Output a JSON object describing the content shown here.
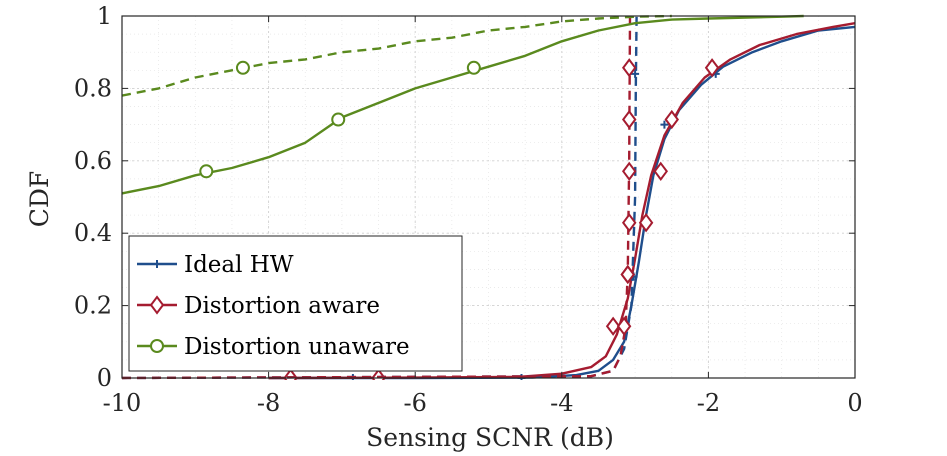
{
  "chart_data": {
    "type": "line",
    "title": "",
    "xlabel": "Sensing SCNR (dB)",
    "ylabel": "CDF",
    "xlim": [
      -10,
      0
    ],
    "ylim": [
      0,
      1
    ],
    "xticks": [
      -10,
      -8,
      -6,
      -4,
      -2,
      0
    ],
    "yticks": [
      0,
      0.2,
      0.4,
      0.6,
      0.8,
      1
    ],
    "xtick_labels": [
      "-10",
      "-8",
      "-6",
      "-4",
      "-2",
      "0"
    ],
    "ytick_labels": [
      "0",
      "0.2",
      "0.4",
      "0.6",
      "0.8",
      "1"
    ],
    "grid": true,
    "legend_location": "bottom-left",
    "series": [
      {
        "name": "Ideal HW",
        "color": "#1f4e8c",
        "marker": "plus",
        "dash": "solid",
        "in_legend": true,
        "points": [
          [
            -8,
            0
          ],
          [
            -6,
            0
          ],
          [
            -4.4,
            0.001
          ],
          [
            -3.8,
            0.008
          ],
          [
            -3.5,
            0.02
          ],
          [
            -3.3,
            0.05
          ],
          [
            -3.15,
            0.1
          ],
          [
            -3.05,
            0.2
          ],
          [
            -2.95,
            0.32
          ],
          [
            -2.85,
            0.45
          ],
          [
            -2.75,
            0.56
          ],
          [
            -2.6,
            0.66
          ],
          [
            -2.4,
            0.74
          ],
          [
            -2.1,
            0.81
          ],
          [
            -1.8,
            0.86
          ],
          [
            -1.4,
            0.9
          ],
          [
            -1,
            0.93
          ],
          [
            -0.5,
            0.96
          ],
          [
            0,
            0.97
          ]
        ],
        "markers": [
          [
            -6.85,
            0
          ],
          [
            -4.55,
            0
          ],
          [
            -3.05,
            0.28
          ],
          [
            -2.6,
            0.7
          ],
          [
            -1.9,
            0.84
          ]
        ]
      },
      {
        "name": "Distortion aware",
        "color": "#a51c30",
        "marker": "diamond",
        "dash": "solid",
        "in_legend": true,
        "points": [
          [
            -8,
            0
          ],
          [
            -6,
            0.001
          ],
          [
            -4.6,
            0.003
          ],
          [
            -4,
            0.012
          ],
          [
            -3.6,
            0.03
          ],
          [
            -3.4,
            0.06
          ],
          [
            -3.25,
            0.12
          ],
          [
            -3.1,
            0.22
          ],
          [
            -3,
            0.33
          ],
          [
            -2.9,
            0.45
          ],
          [
            -2.78,
            0.56
          ],
          [
            -2.6,
            0.67
          ],
          [
            -2.35,
            0.76
          ],
          [
            -2.05,
            0.83
          ],
          [
            -1.7,
            0.88
          ],
          [
            -1.3,
            0.92
          ],
          [
            -0.8,
            0.95
          ],
          [
            -0.3,
            0.97
          ],
          [
            0,
            0.98
          ]
        ],
        "markers": [
          [
            -7.7,
            0
          ],
          [
            -6.5,
            0
          ],
          [
            -3.3,
            0.143
          ],
          [
            -3.1,
            0.286
          ],
          [
            -2.85,
            0.429
          ],
          [
            -2.65,
            0.571
          ],
          [
            -2.5,
            0.714
          ],
          [
            -1.95,
            0.857
          ]
        ]
      },
      {
        "name": "Ideal HW (dashed)",
        "color": "#1f4e8c",
        "marker": "plus",
        "dash": "dashed",
        "in_legend": false,
        "points": [
          [
            -10,
            0
          ],
          [
            -3.6,
            0.005
          ],
          [
            -3.3,
            0.02
          ],
          [
            -3.15,
            0.08
          ],
          [
            -3.05,
            0.2
          ],
          [
            -3,
            0.5
          ],
          [
            -2.99,
            0.8
          ],
          [
            -2.98,
            1
          ]
        ],
        "markers": [
          [
            -3.02,
            0.28
          ],
          [
            -3,
            0.84
          ]
        ]
      },
      {
        "name": "Distortion aware (dashed)",
        "color": "#a51c30",
        "marker": "diamond",
        "dash": "dashed",
        "in_legend": false,
        "points": [
          [
            -10,
            0
          ],
          [
            -3.6,
            0.005
          ],
          [
            -3.3,
            0.02
          ],
          [
            -3.2,
            0.06
          ],
          [
            -3.13,
            0.14
          ],
          [
            -3.1,
            0.3
          ],
          [
            -3.08,
            0.6
          ],
          [
            -3.07,
            1
          ]
        ],
        "markers": [
          [
            -3.15,
            0.143
          ],
          [
            -3.1,
            0.286
          ],
          [
            -3.08,
            0.429
          ],
          [
            -3.08,
            0.571
          ],
          [
            -3.08,
            0.714
          ],
          [
            -3.08,
            0.857
          ]
        ]
      },
      {
        "name": "Distortion unaware",
        "color": "#5a8a1e",
        "marker": "circle",
        "dash": "solid",
        "in_legend": true,
        "points": [
          [
            -10,
            0.51
          ],
          [
            -9.5,
            0.53
          ],
          [
            -9,
            0.56
          ],
          [
            -8.5,
            0.58
          ],
          [
            -8,
            0.61
          ],
          [
            -7.5,
            0.65
          ],
          [
            -7,
            0.72
          ],
          [
            -6.5,
            0.76
          ],
          [
            -6,
            0.8
          ],
          [
            -5.5,
            0.83
          ],
          [
            -5,
            0.86
          ],
          [
            -4.5,
            0.89
          ],
          [
            -4,
            0.93
          ],
          [
            -3.5,
            0.96
          ],
          [
            -3,
            0.98
          ],
          [
            -2.5,
            0.99
          ],
          [
            -2,
            0.993
          ],
          [
            -1,
            0.998
          ],
          [
            -0.7,
            1
          ]
        ],
        "markers": [
          [
            -8.85,
            0.571
          ],
          [
            -7.05,
            0.714
          ],
          [
            -5.2,
            0.857
          ]
        ]
      },
      {
        "name": "Distortion unaware (dashed)",
        "color": "#5a8a1e",
        "marker": "circle",
        "dash": "dashed",
        "in_legend": false,
        "points": [
          [
            -10,
            0.78
          ],
          [
            -9.5,
            0.8
          ],
          [
            -9,
            0.83
          ],
          [
            -8.5,
            0.85
          ],
          [
            -8,
            0.87
          ],
          [
            -7.5,
            0.88
          ],
          [
            -7,
            0.9
          ],
          [
            -6.5,
            0.91
          ],
          [
            -6,
            0.93
          ],
          [
            -5.5,
            0.94
          ],
          [
            -5,
            0.96
          ],
          [
            -4.5,
            0.97
          ],
          [
            -4,
            0.985
          ],
          [
            -3.5,
            0.993
          ],
          [
            -3,
            0.998
          ],
          [
            -2.5,
            1
          ]
        ],
        "markers": [
          [
            -8.35,
            0.857
          ]
        ]
      }
    ]
  }
}
